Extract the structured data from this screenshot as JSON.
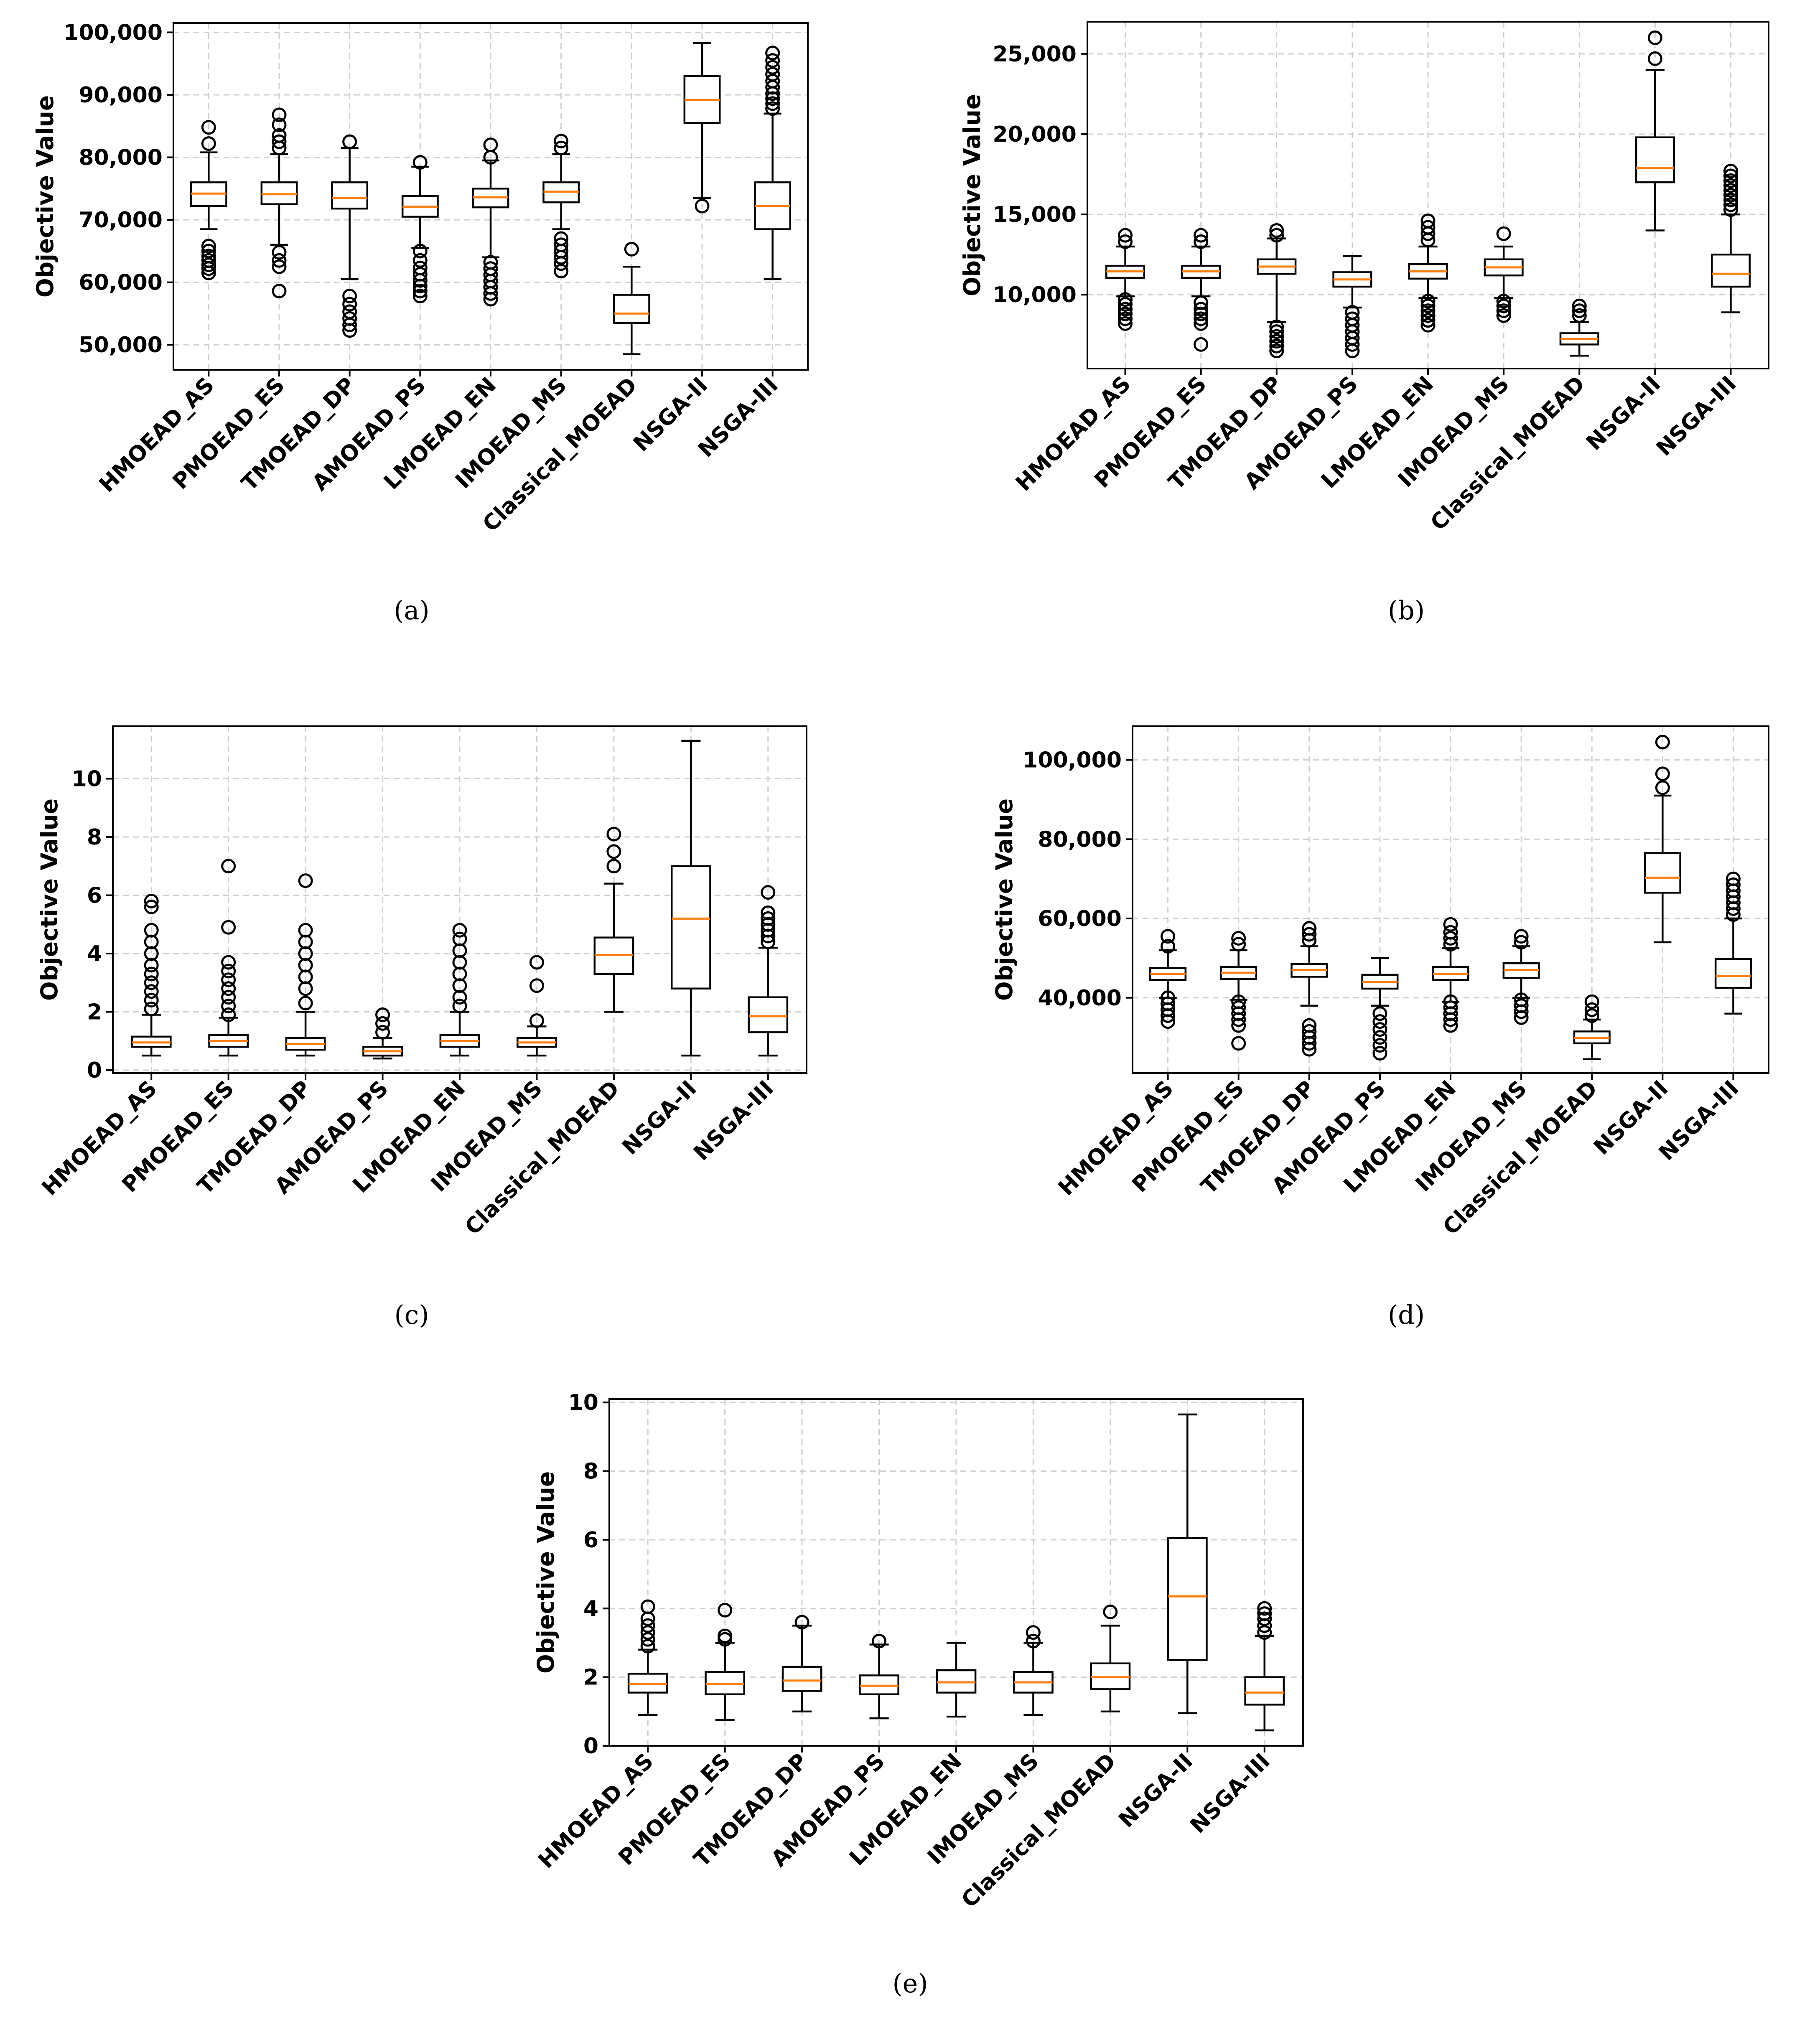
{
  "chart_data": [
    {
      "type": "box",
      "caption": "(a)",
      "ylabel": "Objective Value",
      "ylim": [
        46000,
        101500
      ],
      "yticks": [
        50000,
        60000,
        70000,
        80000,
        90000,
        100000
      ],
      "ytick_labels": [
        "50,000",
        "60,000",
        "70,000",
        "80,000",
        "90,000",
        "100,000"
      ],
      "categories": [
        "HMOEAD_AS",
        "PMOEAD_ES",
        "TMOEAD_DP",
        "AMOEAD_PS",
        "LMOEAD_EN",
        "IMOEAD_MS",
        "Classical_MOEAD",
        "NSGA-II",
        "NSGA-III"
      ],
      "boxes": [
        {
          "whislo": 68500,
          "q1": 72200,
          "med": 74200,
          "q3": 76000,
          "whishi": 80800,
          "fliers": [
            61500,
            62200,
            62800,
            63500,
            64200,
            65000,
            65800,
            82200,
            84800
          ]
        },
        {
          "whislo": 66000,
          "q1": 72500,
          "med": 74100,
          "q3": 76000,
          "whishi": 80500,
          "fliers": [
            58600,
            62500,
            63500,
            64800,
            81500,
            82500,
            83500,
            85200,
            86800
          ]
        },
        {
          "whislo": 60500,
          "q1": 71800,
          "med": 73500,
          "q3": 76000,
          "whishi": 81500,
          "fliers": [
            52300,
            53200,
            54200,
            55300,
            56500,
            57800,
            82500
          ]
        },
        {
          "whislo": 65500,
          "q1": 70500,
          "med": 72100,
          "q3": 73800,
          "whishi": 78500,
          "fliers": [
            57800,
            58600,
            59400,
            60300,
            61300,
            62300,
            63500,
            65000,
            79200
          ]
        },
        {
          "whislo": 64000,
          "q1": 72000,
          "med": 73600,
          "q3": 75000,
          "whishi": 79500,
          "fliers": [
            57300,
            58200,
            59200,
            60200,
            61200,
            62200,
            63200,
            80000,
            82000
          ]
        },
        {
          "whislo": 68500,
          "q1": 72800,
          "med": 74500,
          "q3": 76000,
          "whishi": 80500,
          "fliers": [
            61800,
            63000,
            64000,
            65000,
            66000,
            67000,
            81500,
            82600
          ]
        },
        {
          "whislo": 48500,
          "q1": 53500,
          "med": 55000,
          "q3": 58000,
          "whishi": 62500,
          "fliers": [
            65300
          ]
        },
        {
          "whislo": 73500,
          "q1": 85500,
          "med": 89200,
          "q3": 93000,
          "whishi": 98300,
          "fliers": [
            72200
          ]
        },
        {
          "whislo": 60500,
          "q1": 68500,
          "med": 72200,
          "q3": 76000,
          "whishi": 87000,
          "fliers": [
            87800,
            88600,
            89400,
            90200,
            91200,
            92200,
            93300,
            94400,
            95500,
            96700
          ]
        }
      ]
    },
    {
      "type": "box",
      "caption": "(b)",
      "ylabel": "Objective Value",
      "ylim": [
        5400,
        27000
      ],
      "yticks": [
        10000,
        15000,
        20000,
        25000
      ],
      "ytick_labels": [
        "10,000",
        "15,000",
        "20,000",
        "25,000"
      ],
      "categories": [
        "HMOEAD_AS",
        "PMOEAD_ES",
        "TMOEAD_DP",
        "AMOEAD_PS",
        "LMOEAD_EN",
        "IMOEAD_MS",
        "Classical_MOEAD",
        "NSGA-II",
        "NSGA-III"
      ],
      "boxes": [
        {
          "whislo": 9900,
          "q1": 11050,
          "med": 11450,
          "q3": 11800,
          "whishi": 13000,
          "fliers": [
            8200,
            8500,
            8800,
            9100,
            9400,
            9700,
            13300,
            13700
          ]
        },
        {
          "whislo": 9900,
          "q1": 11050,
          "med": 11450,
          "q3": 11800,
          "whishi": 13000,
          "fliers": [
            6900,
            8200,
            8500,
            8800,
            9100,
            9500,
            13300,
            13700
          ]
        },
        {
          "whislo": 8300,
          "q1": 11300,
          "med": 11750,
          "q3": 12200,
          "whishi": 13500,
          "fliers": [
            6500,
            6800,
            7100,
            7400,
            7700,
            8000,
            13700,
            14000
          ]
        },
        {
          "whislo": 9200,
          "q1": 10500,
          "med": 10950,
          "q3": 11400,
          "whishi": 12400,
          "fliers": [
            6500,
            6900,
            7300,
            7700,
            8100,
            8500,
            8900
          ]
        },
        {
          "whislo": 9800,
          "q1": 11000,
          "med": 11450,
          "q3": 11900,
          "whishi": 13000,
          "fliers": [
            8100,
            8400,
            8700,
            9000,
            9300,
            9600,
            13400,
            13800,
            14200,
            14600
          ]
        },
        {
          "whislo": 9800,
          "q1": 11200,
          "med": 11700,
          "q3": 12200,
          "whishi": 13000,
          "fliers": [
            8700,
            9000,
            9300,
            9600,
            13800
          ]
        },
        {
          "whislo": 6200,
          "q1": 6900,
          "med": 7250,
          "q3": 7600,
          "whishi": 8300,
          "fliers": [
            8700,
            9000,
            9300
          ]
        },
        {
          "whislo": 14000,
          "q1": 17000,
          "med": 17900,
          "q3": 19800,
          "whishi": 24000,
          "fliers": [
            24700,
            26000
          ]
        },
        {
          "whislo": 8900,
          "q1": 10500,
          "med": 11300,
          "q3": 12500,
          "whishi": 15000,
          "fliers": [
            15300,
            15600,
            15900,
            16200,
            16500,
            16800,
            17100,
            17400,
            17700
          ]
        }
      ]
    },
    {
      "type": "box",
      "caption": "(c)",
      "ylabel": "Objective Value",
      "ylim": [
        -0.1,
        11.8
      ],
      "yticks": [
        0,
        2,
        4,
        6,
        8,
        10
      ],
      "ytick_labels": [
        "0",
        "2",
        "4",
        "6",
        "8",
        "10"
      ],
      "categories": [
        "HMOEAD_AS",
        "PMOEAD_ES",
        "TMOEAD_DP",
        "AMOEAD_PS",
        "LMOEAD_EN",
        "IMOEAD_MS",
        "Classical_MOEAD",
        "NSGA-II",
        "NSGA-III"
      ],
      "boxes": [
        {
          "whislo": 0.5,
          "q1": 0.8,
          "med": 0.95,
          "q3": 1.15,
          "whishi": 1.9,
          "fliers": [
            2.1,
            2.4,
            2.7,
            3.0,
            3.3,
            3.6,
            4.0,
            4.4,
            4.8,
            5.6,
            5.8
          ]
        },
        {
          "whislo": 0.5,
          "q1": 0.8,
          "med": 1.0,
          "q3": 1.2,
          "whishi": 1.8,
          "fliers": [
            1.9,
            2.2,
            2.5,
            2.8,
            3.1,
            3.4,
            3.7,
            4.9,
            7.0
          ]
        },
        {
          "whislo": 0.5,
          "q1": 0.7,
          "med": 0.9,
          "q3": 1.1,
          "whishi": 2.0,
          "fliers": [
            2.3,
            2.8,
            3.2,
            3.6,
            4.0,
            4.4,
            4.8,
            6.5
          ]
        },
        {
          "whislo": 0.4,
          "q1": 0.5,
          "med": 0.65,
          "q3": 0.8,
          "whishi": 1.1,
          "fliers": [
            1.3,
            1.6,
            1.9
          ]
        },
        {
          "whislo": 0.5,
          "q1": 0.8,
          "med": 1.0,
          "q3": 1.2,
          "whishi": 2.0,
          "fliers": [
            2.2,
            2.5,
            2.9,
            3.3,
            3.7,
            4.1,
            4.5,
            4.8
          ]
        },
        {
          "whislo": 0.5,
          "q1": 0.8,
          "med": 0.95,
          "q3": 1.1,
          "whishi": 1.5,
          "fliers": [
            1.7,
            2.9,
            3.7
          ]
        },
        {
          "whislo": 2.0,
          "q1": 3.3,
          "med": 3.95,
          "q3": 4.55,
          "whishi": 6.4,
          "fliers": [
            7.0,
            7.5,
            8.1
          ]
        },
        {
          "whislo": 0.5,
          "q1": 2.8,
          "med": 5.2,
          "q3": 7.0,
          "whishi": 11.3,
          "fliers": []
        },
        {
          "whislo": 0.5,
          "q1": 1.3,
          "med": 1.85,
          "q3": 2.5,
          "whishi": 4.2,
          "fliers": [
            4.4,
            4.6,
            4.8,
            5.0,
            5.2,
            5.4,
            6.1
          ]
        }
      ]
    },
    {
      "type": "box",
      "caption": "(d)",
      "ylabel": "Objective Value",
      "ylim": [
        21000,
        108500
      ],
      "yticks": [
        40000,
        60000,
        80000,
        100000
      ],
      "ytick_labels": [
        "40,000",
        "60,000",
        "80,000",
        "100,000"
      ],
      "categories": [
        "HMOEAD_AS",
        "PMOEAD_ES",
        "TMOEAD_DP",
        "AMOEAD_PS",
        "LMOEAD_EN",
        "IMOEAD_MS",
        "Classical_MOEAD",
        "NSGA-II",
        "NSGA-III"
      ],
      "boxes": [
        {
          "whislo": 40000,
          "q1": 44500,
          "med": 46000,
          "q3": 47500,
          "whishi": 52000,
          "fliers": [
            34000,
            35500,
            37000,
            38500,
            40000,
            53000,
            55500
          ]
        },
        {
          "whislo": 39500,
          "q1": 44700,
          "med": 46300,
          "q3": 47800,
          "whishi": 52000,
          "fliers": [
            28500,
            33000,
            34500,
            36000,
            37500,
            39000,
            53500,
            55000
          ]
        },
        {
          "whislo": 38000,
          "q1": 45300,
          "med": 47000,
          "q3": 48500,
          "whishi": 53000,
          "fliers": [
            27000,
            28500,
            30000,
            31500,
            33000,
            54500,
            56000,
            57500
          ]
        },
        {
          "whislo": 38000,
          "q1": 42300,
          "med": 44000,
          "q3": 45800,
          "whishi": 50000,
          "fliers": [
            26000,
            28000,
            30000,
            32000,
            34000,
            36000
          ]
        },
        {
          "whislo": 39000,
          "q1": 44500,
          "med": 46000,
          "q3": 47800,
          "whishi": 52500,
          "fliers": [
            33000,
            34500,
            36000,
            37500,
            39000,
            53500,
            55000,
            56500,
            58500
          ]
        },
        {
          "whislo": 40000,
          "q1": 45000,
          "med": 47000,
          "q3": 48700,
          "whishi": 53000,
          "fliers": [
            35000,
            36500,
            38000,
            39500,
            54000,
            55500
          ]
        },
        {
          "whislo": 24500,
          "q1": 28500,
          "med": 29800,
          "q3": 31500,
          "whishi": 34500,
          "fliers": [
            35500,
            37000,
            39000
          ]
        },
        {
          "whislo": 54000,
          "q1": 66500,
          "med": 70300,
          "q3": 76500,
          "whishi": 91000,
          "fliers": [
            93000,
            96500,
            104500
          ]
        },
        {
          "whislo": 36000,
          "q1": 42500,
          "med": 45500,
          "q3": 49800,
          "whishi": 60000,
          "fliers": [
            61000,
            62500,
            64000,
            65500,
            67000,
            68500,
            70000
          ]
        }
      ]
    },
    {
      "type": "box",
      "caption": "(e)",
      "ylabel": "Objective Value",
      "ylim": [
        0,
        10.1
      ],
      "yticks": [
        0,
        2,
        4,
        6,
        8,
        10
      ],
      "ytick_labels": [
        "0",
        "2",
        "4",
        "6",
        "8",
        "10"
      ],
      "categories": [
        "HMOEAD_AS",
        "PMOEAD_ES",
        "TMOEAD_DP",
        "AMOEAD_PS",
        "LMOEAD_EN",
        "IMOEAD_MS",
        "Classical_MOEAD",
        "NSGA-II",
        "NSGA-III"
      ],
      "boxes": [
        {
          "whislo": 0.9,
          "q1": 1.55,
          "med": 1.8,
          "q3": 2.1,
          "whishi": 2.8,
          "fliers": [
            2.9,
            3.1,
            3.3,
            3.5,
            3.7,
            4.05
          ]
        },
        {
          "whislo": 0.75,
          "q1": 1.5,
          "med": 1.8,
          "q3": 2.15,
          "whishi": 3.0,
          "fliers": [
            3.1,
            3.2,
            3.95
          ]
        },
        {
          "whislo": 1.0,
          "q1": 1.6,
          "med": 1.9,
          "q3": 2.3,
          "whishi": 3.5,
          "fliers": [
            3.6
          ]
        },
        {
          "whislo": 0.8,
          "q1": 1.5,
          "med": 1.75,
          "q3": 2.05,
          "whishi": 2.95,
          "fliers": [
            3.05
          ]
        },
        {
          "whislo": 0.85,
          "q1": 1.55,
          "med": 1.85,
          "q3": 2.2,
          "whishi": 3.0,
          "fliers": []
        },
        {
          "whislo": 0.9,
          "q1": 1.55,
          "med": 1.85,
          "q3": 2.15,
          "whishi": 3.0,
          "fliers": [
            3.05,
            3.3
          ]
        },
        {
          "whislo": 1.0,
          "q1": 1.65,
          "med": 2.0,
          "q3": 2.4,
          "whishi": 3.5,
          "fliers": [
            3.9
          ]
        },
        {
          "whislo": 0.95,
          "q1": 2.5,
          "med": 4.35,
          "q3": 6.05,
          "whishi": 9.65,
          "fliers": []
        },
        {
          "whislo": 0.45,
          "q1": 1.2,
          "med": 1.55,
          "q3": 2.0,
          "whishi": 3.2,
          "fliers": [
            3.3,
            3.5,
            3.7,
            3.85,
            4.0
          ]
        }
      ]
    }
  ]
}
